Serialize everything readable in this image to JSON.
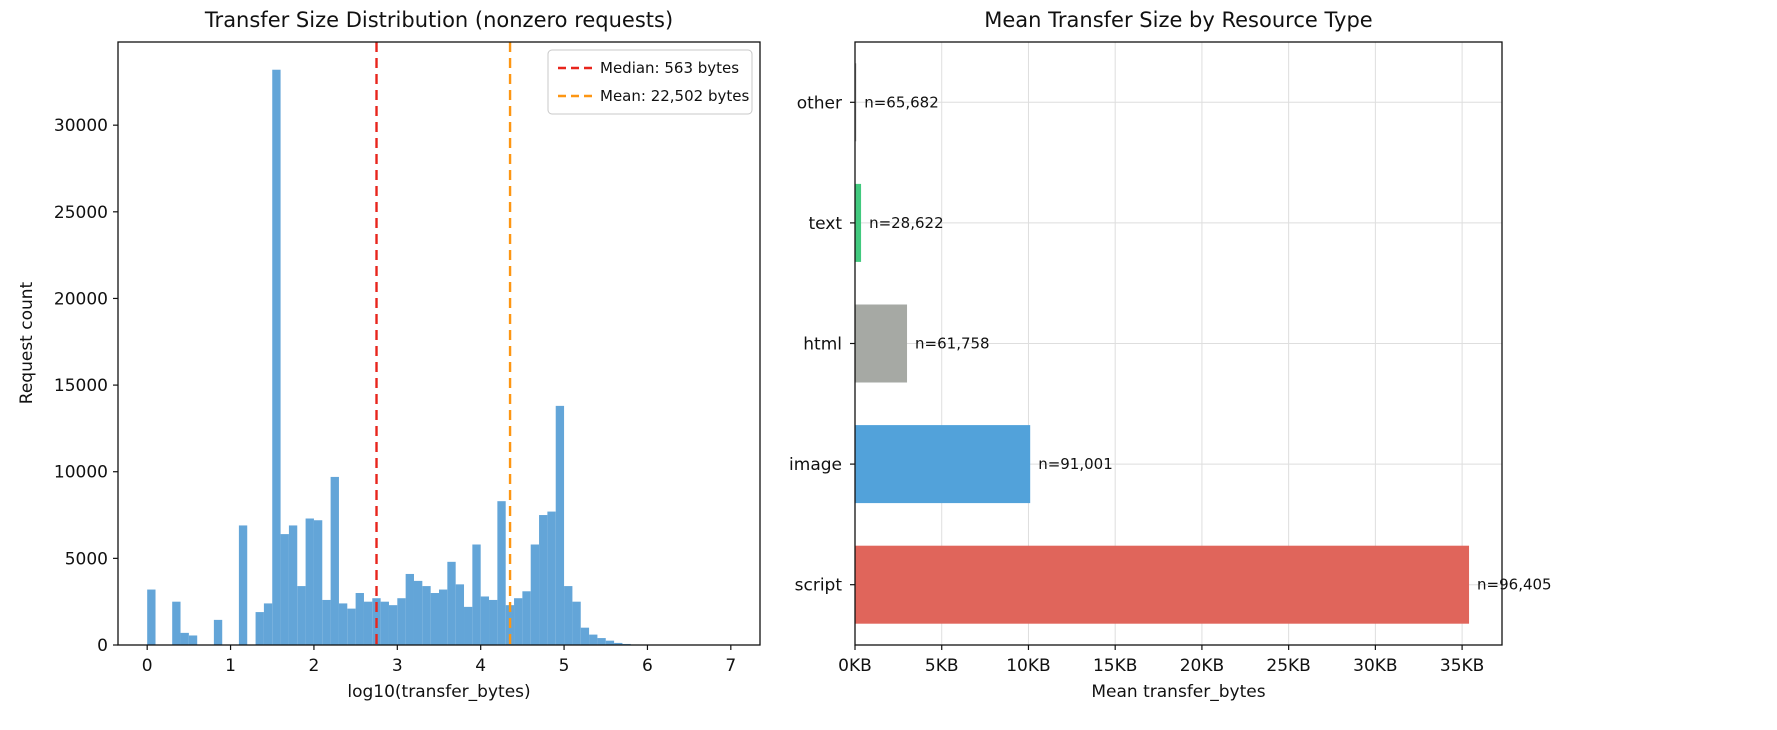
{
  "page": {
    "background": "#ffffff"
  },
  "chart_data": [
    {
      "type": "bar",
      "subtype": "histogram",
      "title": "Transfer Size Distribution (nonzero requests)",
      "xlabel": "log10(transfer_bytes)",
      "ylabel": "Request count",
      "xlim": [
        -0.35,
        7.35
      ],
      "ylim": [
        0,
        34800
      ],
      "xticks": [
        0,
        1,
        2,
        3,
        4,
        5,
        6,
        7
      ],
      "yticks": [
        0,
        5000,
        10000,
        15000,
        20000,
        25000,
        30000
      ],
      "grid": false,
      "legend_position": "upper right",
      "bar_color": "#63a5d8",
      "bin_width": 0.1,
      "bins": [
        [
          0.0,
          3200
        ],
        [
          0.3,
          2500
        ],
        [
          0.4,
          700
        ],
        [
          0.5,
          550
        ],
        [
          0.8,
          1450
        ],
        [
          1.1,
          6900
        ],
        [
          1.3,
          1900
        ],
        [
          1.4,
          2400
        ],
        [
          1.5,
          33200
        ],
        [
          1.6,
          6400
        ],
        [
          1.7,
          6900
        ],
        [
          1.8,
          3400
        ],
        [
          1.9,
          7300
        ],
        [
          2.0,
          7200
        ],
        [
          2.1,
          2600
        ],
        [
          2.2,
          9700
        ],
        [
          2.3,
          2400
        ],
        [
          2.4,
          2100
        ],
        [
          2.5,
          3000
        ],
        [
          2.6,
          2500
        ],
        [
          2.7,
          2700
        ],
        [
          2.8,
          2500
        ],
        [
          2.9,
          2300
        ],
        [
          3.0,
          2700
        ],
        [
          3.1,
          4100
        ],
        [
          3.2,
          3700
        ],
        [
          3.3,
          3400
        ],
        [
          3.4,
          3000
        ],
        [
          3.5,
          3200
        ],
        [
          3.6,
          4800
        ],
        [
          3.7,
          3500
        ],
        [
          3.8,
          2200
        ],
        [
          3.9,
          5800
        ],
        [
          4.0,
          2800
        ],
        [
          4.1,
          2600
        ],
        [
          4.2,
          8300
        ],
        [
          4.3,
          2300
        ],
        [
          4.4,
          2700
        ],
        [
          4.5,
          3100
        ],
        [
          4.6,
          5800
        ],
        [
          4.7,
          7500
        ],
        [
          4.8,
          7700
        ],
        [
          4.9,
          13800
        ],
        [
          5.0,
          3400
        ],
        [
          5.1,
          2500
        ],
        [
          5.2,
          1000
        ],
        [
          5.3,
          600
        ],
        [
          5.4,
          400
        ],
        [
          5.5,
          250
        ],
        [
          5.6,
          120
        ],
        [
          5.7,
          60
        ],
        [
          5.8,
          30
        ],
        [
          5.9,
          15
        ],
        [
          6.0,
          8
        ]
      ],
      "reference_lines": [
        {
          "name": "median-line",
          "x": 2.7505,
          "value_bytes": 563,
          "style": "dashed",
          "color": "#e8251c",
          "label": "Median: 563 bytes"
        },
        {
          "name": "mean-line",
          "x": 4.3522,
          "value_bytes": 22502,
          "style": "dashed",
          "color": "#fd9613",
          "label": "Mean: 22,502 bytes"
        }
      ]
    },
    {
      "type": "bar",
      "orientation": "horizontal",
      "title": "Mean Transfer Size by Resource Type",
      "xlabel": "Mean transfer_bytes",
      "categories_top_to_bottom": [
        "other",
        "text",
        "html",
        "image",
        "script"
      ],
      "values_kb": [
        0.07,
        0.35,
        3.0,
        10.1,
        35.4
      ],
      "bar_labels": [
        "n=65,682",
        "n=28,622",
        "n=61,758",
        "n=91,001",
        "n=96,405"
      ],
      "colors": [
        "#999999",
        "#41c97e",
        "#a6a9a4",
        "#52a2da",
        "#e0655b"
      ],
      "xticks_kb": [
        0,
        5,
        10,
        15,
        20,
        25,
        30,
        35
      ],
      "xtick_labels": [
        "0KB",
        "5KB",
        "10KB",
        "15KB",
        "20KB",
        "25KB",
        "30KB",
        "35KB"
      ],
      "xlim_kb": [
        0,
        37.3
      ],
      "grid": true,
      "grid_color": "#dedede"
    }
  ]
}
